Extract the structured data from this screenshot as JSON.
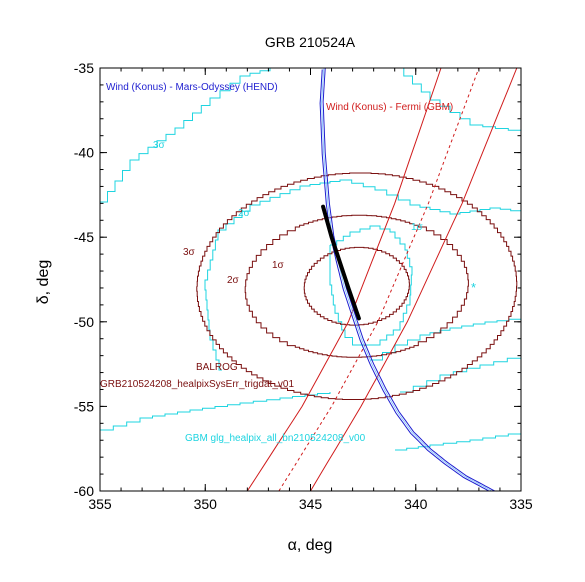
{
  "chart_data": {
    "type": "line",
    "title": "GRB 210524A",
    "xlabel": "α, deg",
    "ylabel": "δ, deg",
    "xlim": [
      355,
      335
    ],
    "ylim": [
      -60,
      -35
    ],
    "x_ticks": [
      355,
      350,
      345,
      340,
      335
    ],
    "y_ticks": [
      -35,
      -40,
      -45,
      -50,
      -55,
      -60
    ],
    "x_tick_labels": [
      "355",
      "350",
      "345",
      "340",
      "335"
    ],
    "y_tick_labels": [
      "-35",
      "-40",
      "-45",
      "-50",
      "-55",
      "-60"
    ],
    "grid": false,
    "colors": {
      "ipn_mo": "#1f1fd0",
      "ipn_fermi": "#d01c1c",
      "balrog": "#7a0f0f",
      "gbm": "#1ed4e0",
      "box": "#1010a0",
      "intersection": "#000000"
    },
    "annotations": {
      "mo_label": "Wind (Konus)  - Mars-Odyssey (HEND)",
      "fermi_label": "Wind (Konus) - Fermi (GBM)",
      "balrog_label": "BALROG",
      "balrog_file": "GRB210524208_healpixSysErr_trigdat_v01",
      "gbm_file": "GBM glg_healpix_all_bn210524208_v00",
      "sigma1": "1σ",
      "sigma2": "2σ",
      "sigma3": "3σ",
      "star": "*"
    },
    "series": [
      {
        "name": "Wind (Konus)  - Mars-Odyssey (HEND)",
        "kind": "annulus_arc",
        "x": [
          344.3,
          344.4,
          344.3,
          344.1,
          343.9,
          343.6,
          343.3,
          342.9,
          342.5,
          342.0,
          341.4,
          340.8,
          340.1,
          339.3,
          338.5,
          337.6,
          336.7,
          335.8
        ],
        "y": [
          -35.0,
          -37.0,
          -40.0,
          -43.0,
          -44.9,
          -46.5,
          -48.0,
          -49.5,
          -51.0,
          -52.5,
          -54.0,
          -55.3,
          -56.5,
          -57.5,
          -58.3,
          -59.1,
          -59.7,
          -60.3
        ]
      },
      {
        "name": "Wind (Konus) - Fermi (GBM)",
        "kind": "annulus_bounds",
        "inner_x": [
          348.0,
          345.4,
          343.2,
          341.0,
          338.8
        ],
        "outer_x": [
          345.0,
          342.6,
          340.4,
          337.8,
          335.2
        ],
        "center_x": [
          346.5,
          344.0,
          341.8,
          339.4,
          337.0
        ],
        "y": [
          -60,
          -55,
          -50,
          -43,
          -35
        ]
      },
      {
        "name": "BALROG",
        "kind": "contours",
        "levels": [
          "1σ",
          "2σ",
          "3σ"
        ],
        "center": [
          342.8,
          -47.9
        ],
        "semi_axes_deg": [
          [
            2.5,
            2.3
          ],
          [
            5.3,
            4.2
          ],
          [
            7.6,
            6.7
          ]
        ]
      },
      {
        "name": "GBM glg_healpix_all_bn210524208_v00",
        "kind": "contours",
        "levels": [
          "1σ",
          "2σ",
          "3σ"
        ],
        "star": [
          337.5,
          -47.9
        ]
      }
    ]
  }
}
